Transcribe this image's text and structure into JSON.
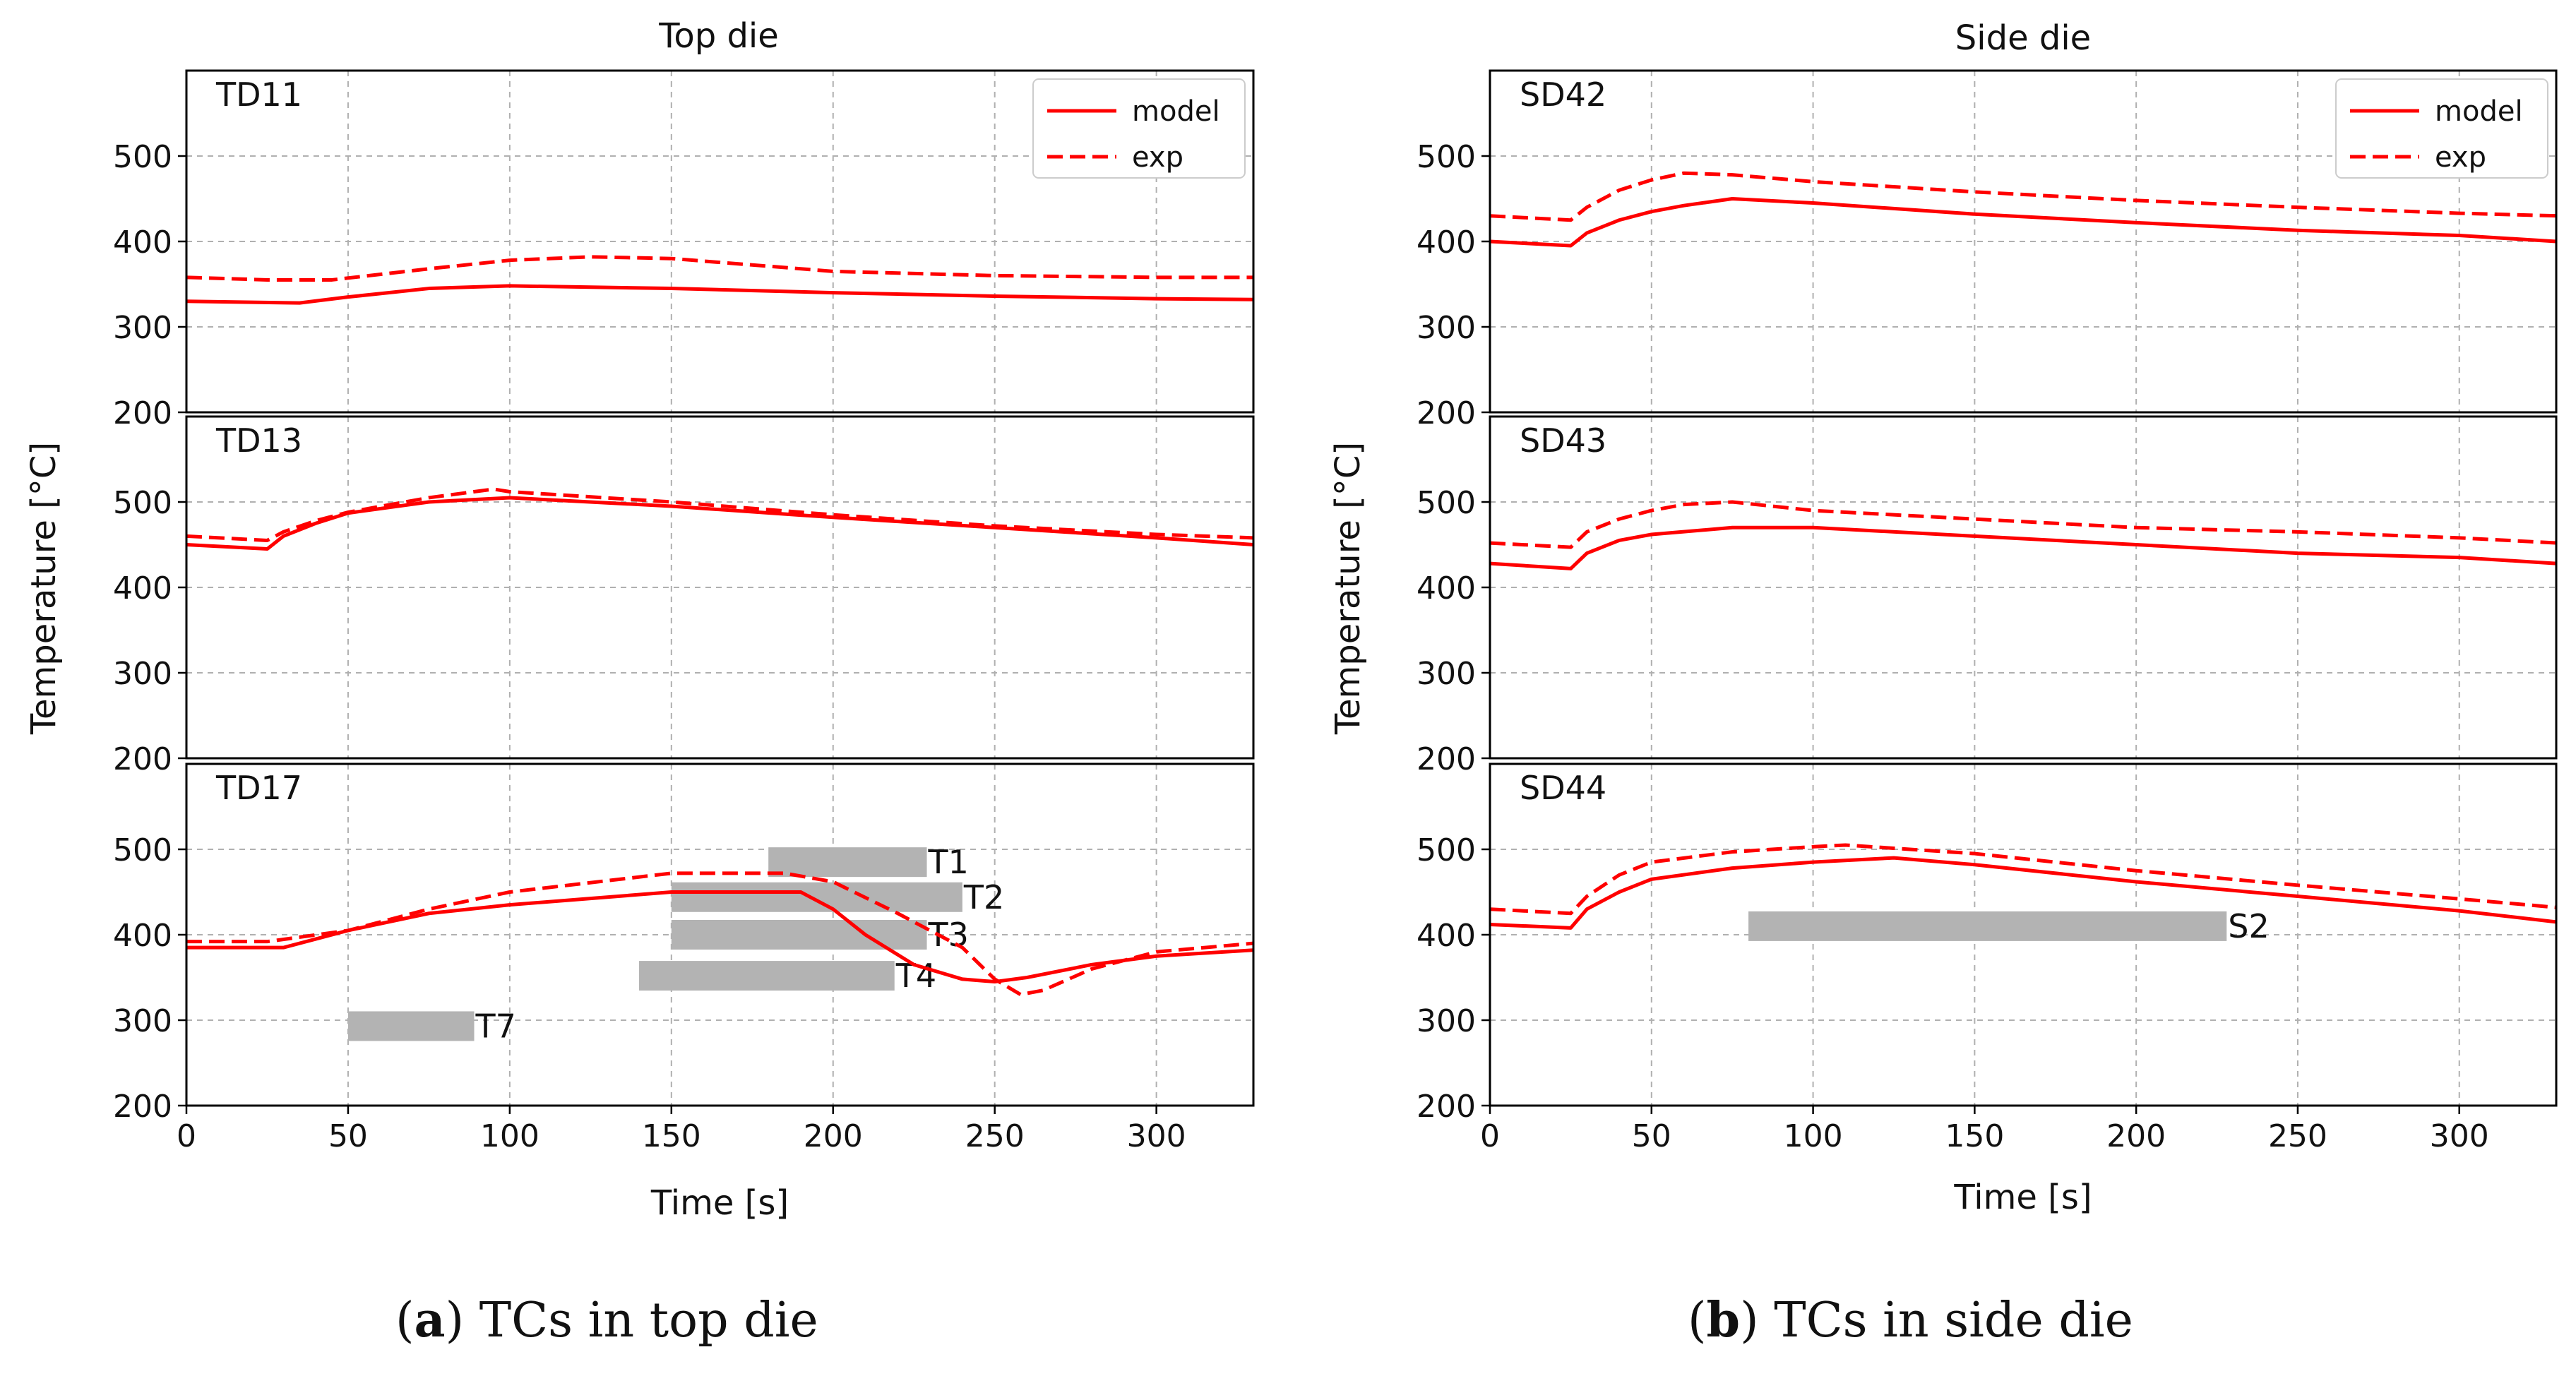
{
  "figure": {
    "left_caption": {
      "letter": "a",
      "text": "TCs in top die"
    },
    "right_caption": {
      "letter": "b",
      "text": "TCs in side die"
    }
  },
  "chart_data": [
    {
      "type": "line",
      "title": "Top die",
      "xlabel": "Time [s]",
      "ylabel": "Temperature [°C]",
      "xlim": [
        0,
        330
      ],
      "ylim": [
        200,
        600
      ],
      "xticks": [
        0,
        50,
        100,
        150,
        200,
        250,
        300
      ],
      "yticks": [
        200,
        300,
        400,
        500
      ],
      "grid": true,
      "legend": {
        "placement": "top-right",
        "entries": [
          {
            "label": "model",
            "style": "solid"
          },
          {
            "label": "exp",
            "style": "dashed"
          }
        ]
      },
      "color": "#ff0000",
      "bar_color": "#b3b3b3",
      "panels": [
        {
          "label": "TD11",
          "series": [
            {
              "name": "model",
              "x": [
                0,
                35,
                50,
                75,
                100,
                150,
                200,
                250,
                300,
                330
              ],
              "y": [
                330,
                328,
                335,
                345,
                348,
                345,
                340,
                336,
                333,
                332
              ]
            },
            {
              "name": "exp",
              "x": [
                0,
                25,
                45,
                75,
                100,
                125,
                150,
                200,
                250,
                300,
                330
              ],
              "y": [
                358,
                355,
                355,
                368,
                378,
                382,
                380,
                365,
                360,
                358,
                358
              ]
            }
          ],
          "bars": []
        },
        {
          "label": "TD13",
          "series": [
            {
              "name": "model",
              "x": [
                0,
                25,
                30,
                40,
                50,
                75,
                100,
                150,
                200,
                250,
                300,
                330
              ],
              "y": [
                450,
                445,
                460,
                475,
                487,
                500,
                505,
                495,
                482,
                470,
                458,
                450
              ]
            },
            {
              "name": "exp",
              "x": [
                0,
                25,
                30,
                40,
                50,
                75,
                95,
                100,
                150,
                200,
                250,
                300,
                330
              ],
              "y": [
                460,
                455,
                465,
                478,
                488,
                505,
                515,
                512,
                500,
                485,
                472,
                462,
                458
              ]
            }
          ],
          "bars": []
        },
        {
          "label": "TD17",
          "series": [
            {
              "name": "model",
              "x": [
                0,
                30,
                50,
                75,
                100,
                150,
                190,
                200,
                210,
                225,
                240,
                250,
                260,
                280,
                300,
                330
              ],
              "y": [
                385,
                385,
                405,
                425,
                435,
                450,
                450,
                430,
                400,
                365,
                348,
                345,
                350,
                365,
                375,
                382
              ]
            },
            {
              "name": "exp",
              "x": [
                0,
                25,
                50,
                75,
                100,
                150,
                185,
                200,
                220,
                240,
                250,
                258,
                265,
                280,
                300,
                330
              ],
              "y": [
                392,
                392,
                405,
                430,
                450,
                472,
                472,
                462,
                425,
                385,
                348,
                330,
                335,
                360,
                380,
                390
              ]
            }
          ],
          "bars": [
            {
              "label": "T1",
              "start": 180,
              "end": 229,
              "y": 485
            },
            {
              "label": "T2",
              "start": 150,
              "end": 240,
              "y": 444
            },
            {
              "label": "T3",
              "start": 150,
              "end": 229,
              "y": 400
            },
            {
              "label": "T4",
              "start": 140,
              "end": 219,
              "y": 352
            },
            {
              "label": "T7",
              "start": 50,
              "end": 89,
              "y": 293
            }
          ]
        }
      ]
    },
    {
      "type": "line",
      "title": "Side die",
      "xlabel": "Time [s]",
      "ylabel": "Temperature [°C]",
      "xlim": [
        0,
        330
      ],
      "ylim": [
        200,
        600
      ],
      "xticks": [
        0,
        50,
        100,
        150,
        200,
        250,
        300
      ],
      "yticks": [
        200,
        300,
        400,
        500
      ],
      "grid": true,
      "legend": {
        "placement": "top-right",
        "entries": [
          {
            "label": "model",
            "style": "solid"
          },
          {
            "label": "exp",
            "style": "dashed"
          }
        ]
      },
      "color": "#ff0000",
      "bar_color": "#b3b3b3",
      "panels": [
        {
          "label": "SD42",
          "series": [
            {
              "name": "model",
              "x": [
                0,
                25,
                30,
                40,
                50,
                60,
                75,
                100,
                150,
                200,
                250,
                300,
                330
              ],
              "y": [
                400,
                395,
                410,
                425,
                435,
                442,
                450,
                445,
                432,
                422,
                413,
                407,
                400
              ]
            },
            {
              "name": "exp",
              "x": [
                0,
                25,
                30,
                40,
                50,
                60,
                75,
                100,
                150,
                200,
                250,
                300,
                330
              ],
              "y": [
                430,
                425,
                440,
                460,
                472,
                480,
                478,
                470,
                458,
                448,
                440,
                433,
                430
              ]
            }
          ],
          "bars": []
        },
        {
          "label": "SD43",
          "series": [
            {
              "name": "model",
              "x": [
                0,
                25,
                30,
                40,
                50,
                75,
                100,
                150,
                200,
                250,
                300,
                330
              ],
              "y": [
                428,
                422,
                440,
                455,
                462,
                470,
                470,
                460,
                450,
                440,
                435,
                428
              ]
            },
            {
              "name": "exp",
              "x": [
                0,
                25,
                30,
                40,
                50,
                60,
                75,
                100,
                150,
                200,
                250,
                300,
                330
              ],
              "y": [
                452,
                447,
                465,
                480,
                490,
                497,
                500,
                490,
                480,
                470,
                465,
                458,
                452
              ]
            }
          ],
          "bars": []
        },
        {
          "label": "SD44",
          "series": [
            {
              "name": "model",
              "x": [
                0,
                25,
                30,
                40,
                50,
                75,
                100,
                125,
                150,
                200,
                250,
                300,
                330
              ],
              "y": [
                412,
                408,
                430,
                450,
                465,
                478,
                485,
                490,
                482,
                462,
                445,
                428,
                415
              ]
            },
            {
              "name": "exp",
              "x": [
                0,
                25,
                30,
                40,
                50,
                75,
                100,
                110,
                150,
                200,
                250,
                300,
                330
              ],
              "y": [
                430,
                425,
                445,
                470,
                485,
                497,
                503,
                505,
                495,
                475,
                458,
                442,
                432
              ]
            }
          ],
          "bars": [
            {
              "label": "S2",
              "start": 80,
              "end": 228,
              "y": 410
            }
          ]
        }
      ]
    }
  ]
}
